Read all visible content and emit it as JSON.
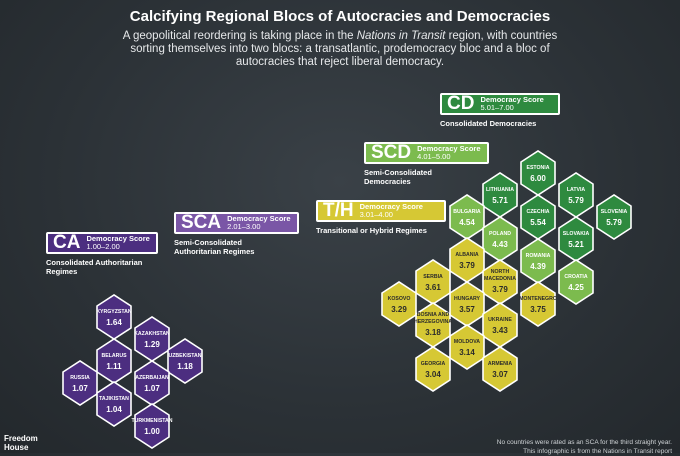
{
  "header": {
    "title": "Calcifying Regional Blocs of Autocracies and Democracies",
    "subtitle_pre": "A geopolitical reordering is taking place in the ",
    "subtitle_em": "Nations in Transit",
    "subtitle_post": " region, with countries sorting themselves into two blocs: a transatlantic, prodemocracy bloc and a bloc of autocracies that reject liberal democracy."
  },
  "categories": {
    "cd": {
      "abbr": "CD",
      "score_label": "Democracy Score",
      "range": "5.01–7.00",
      "name": "Consolidated Democracies",
      "color": "#2e8a3f"
    },
    "scd": {
      "abbr": "SCD",
      "score_label": "Democracy Score",
      "range": "4.01–5.00",
      "name": "Semi-Consolidated Democracies",
      "color": "#7cbb4e"
    },
    "th": {
      "abbr": "T/H",
      "score_label": "Democracy Score",
      "range": "3.01–4.00",
      "name": "Transitional or Hybrid Regimes",
      "color": "#d6c834"
    },
    "sca": {
      "abbr": "SCA",
      "score_label": "Democracy Score",
      "range": "2.01–3.00",
      "name": "Semi-Consolidated Authoritarian Regimes",
      "color": "#7a56a6"
    },
    "ca": {
      "abbr": "CA",
      "score_label": "Democracy Score",
      "range": "1.00–2.00",
      "name": "Consolidated Authoritarian Regimes",
      "color": "#4c2e80"
    }
  },
  "countries": [
    {
      "name": "ESTONIA",
      "score": "6.00",
      "cat": "cd"
    },
    {
      "name": "LITHUANIA",
      "score": "5.71",
      "cat": "cd"
    },
    {
      "name": "LATVIA",
      "score": "5.79",
      "cat": "cd"
    },
    {
      "name": "CZECHIA",
      "score": "5.54",
      "cat": "cd"
    },
    {
      "name": "SLOVENIA",
      "score": "5.79",
      "cat": "cd"
    },
    {
      "name": "SLOVAKIA",
      "score": "5.21",
      "cat": "cd"
    },
    {
      "name": "BULGARIA",
      "score": "4.54",
      "cat": "scd"
    },
    {
      "name": "POLAND",
      "score": "4.43",
      "cat": "scd"
    },
    {
      "name": "ROMANIA",
      "score": "4.39",
      "cat": "scd"
    },
    {
      "name": "CROATIA",
      "score": "4.25",
      "cat": "scd"
    },
    {
      "name": "ALBANIA",
      "score": "3.79",
      "cat": "th"
    },
    {
      "name": "NORTH MACEDONIA",
      "score": "3.79",
      "cat": "th"
    },
    {
      "name": "SERBIA",
      "score": "3.61",
      "cat": "th"
    },
    {
      "name": "HUNGARY",
      "score": "3.57",
      "cat": "th"
    },
    {
      "name": "MONTENEGRO",
      "score": "3.75",
      "cat": "th"
    },
    {
      "name": "KOSOVO",
      "score": "3.29",
      "cat": "th"
    },
    {
      "name": "BOSNIA AND HERZEGOVINA",
      "score": "3.18",
      "cat": "th"
    },
    {
      "name": "UKRAINE",
      "score": "3.43",
      "cat": "th"
    },
    {
      "name": "MOLDOVA",
      "score": "3.14",
      "cat": "th"
    },
    {
      "name": "GEORGIA",
      "score": "3.04",
      "cat": "th"
    },
    {
      "name": "ARMENIA",
      "score": "3.07",
      "cat": "th"
    },
    {
      "name": "KYRGYZSTAN",
      "score": "1.64",
      "cat": "ca"
    },
    {
      "name": "KAZAKHSTAN",
      "score": "1.29",
      "cat": "ca"
    },
    {
      "name": "BELARUS",
      "score": "1.11",
      "cat": "ca"
    },
    {
      "name": "UZBEKISTAN",
      "score": "1.18",
      "cat": "ca"
    },
    {
      "name": "RUSSIA",
      "score": "1.07",
      "cat": "ca"
    },
    {
      "name": "AZERBAIJAN",
      "score": "1.07",
      "cat": "ca"
    },
    {
      "name": "TAJIKISTAN",
      "score": "1.04",
      "cat": "ca"
    },
    {
      "name": "TURKMENISTAN",
      "score": "1.00",
      "cat": "ca"
    }
  ],
  "footer": {
    "logo_line1": "Freedom",
    "logo_line2": "House",
    "note1": "No countries were rated as an SCA for the third straight year.",
    "note2": "This infographic is from the Nations in Transit report"
  }
}
